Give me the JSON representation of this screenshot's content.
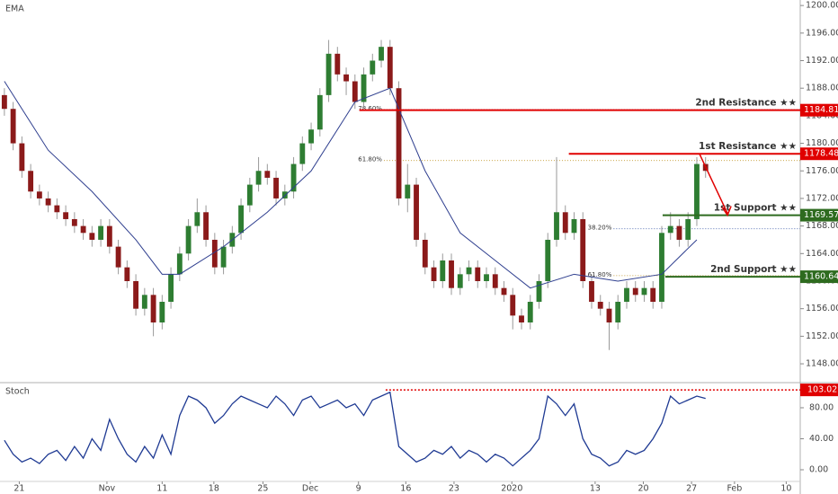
{
  "chart_data": {
    "type": "candlestick",
    "indicator_label": "EMA",
    "xlim": [
      0,
      91.3
    ],
    "xticks": [
      {
        "value": 2.2,
        "label": "21"
      },
      {
        "value": 12.2,
        "label": "Nov"
      },
      {
        "value": 18.5,
        "label": "11"
      },
      {
        "value": 24.4,
        "label": "18"
      },
      {
        "value": 30,
        "label": "25"
      },
      {
        "value": 35.4,
        "label": "Dec"
      },
      {
        "value": 40.9,
        "label": "9"
      },
      {
        "value": 46.3,
        "label": "16"
      },
      {
        "value": 51.8,
        "label": "23"
      },
      {
        "value": 58.4,
        "label": "2020"
      },
      {
        "value": 67.9,
        "label": "13"
      },
      {
        "value": 73.4,
        "label": "20"
      },
      {
        "value": 78.9,
        "label": "27"
      },
      {
        "value": 83.8,
        "label": "Feb"
      },
      {
        "value": 89.7,
        "label": "10"
      }
    ],
    "ylim": [
      1145.4,
      1200.8
    ],
    "yticks": [
      {
        "value": 1148,
        "label": "1148.00"
      },
      {
        "value": 1152,
        "label": "1152.00"
      },
      {
        "value": 1156,
        "label": "1156.00"
      },
      {
        "value": 1160,
        "label": "1160.00"
      },
      {
        "value": 1164,
        "label": "1164.00"
      },
      {
        "value": 1168,
        "label": "1168.00"
      },
      {
        "value": 1172,
        "label": "1172.00"
      },
      {
        "value": 1176,
        "label": "1176.00"
      },
      {
        "value": 1180,
        "label": "1180.00"
      },
      {
        "value": 1184,
        "label": "1184.00"
      },
      {
        "value": 1188,
        "label": "1188.00"
      },
      {
        "value": 1192,
        "label": "1192.00"
      },
      {
        "value": 1196,
        "label": "1196.00"
      },
      {
        "value": 1200,
        "label": "1200.00"
      }
    ],
    "up_color": "#2e7d32",
    "down_color": "#8b1a1a",
    "open": [
      1187,
      1185,
      1180,
      1176,
      1173,
      1172,
      1171,
      1170,
      1169,
      1168,
      1167,
      1166,
      1168,
      1165,
      1162,
      1160,
      1156,
      1158,
      1154,
      1157,
      1161,
      1164,
      1168,
      1170,
      1166,
      1162,
      1165,
      1167,
      1171,
      1174,
      1176,
      1175,
      1172,
      1173,
      1177,
      1180,
      1182,
      1187,
      1193,
      1190,
      1189,
      1186,
      1190,
      1192,
      1194,
      1188,
      1172,
      1174,
      1166,
      1162,
      1160,
      1163,
      1159,
      1161,
      1162,
      1160,
      1161,
      1159,
      1158,
      1155,
      1154,
      1157,
      1160,
      1166,
      1170,
      1167,
      1169,
      1160,
      1157,
      1156,
      1154,
      1157,
      1159,
      1158,
      1159,
      1157,
      1167,
      1168,
      1166,
      1169,
      1177
    ],
    "high": [
      1188,
      1186,
      1181,
      1177,
      1174,
      1173,
      1172,
      1171,
      1170,
      1169,
      1168,
      1169,
      1169,
      1166,
      1163,
      1161,
      1159,
      1159,
      1158,
      1162,
      1165,
      1169,
      1172,
      1171,
      1167,
      1166,
      1168,
      1172,
      1175,
      1178,
      1177,
      1176,
      1174,
      1178,
      1181,
      1183,
      1188,
      1195,
      1194,
      1191,
      1190,
      1191,
      1193,
      1195,
      1195,
      1189,
      1177,
      1175,
      1167,
      1163,
      1164,
      1164,
      1162,
      1163,
      1163,
      1162,
      1162,
      1160,
      1159,
      1156,
      1158,
      1161,
      1167,
      1178,
      1171,
      1170,
      1170,
      1161,
      1158,
      1157,
      1158,
      1160,
      1160,
      1160,
      1160,
      1168,
      1170,
      1169,
      1170,
      1178,
      1178
    ],
    "low": [
      1184,
      1179,
      1175,
      1172,
      1171,
      1170,
      1169,
      1168,
      1167,
      1166,
      1165,
      1165,
      1164,
      1161,
      1159,
      1155,
      1155,
      1152,
      1153,
      1156,
      1160,
      1163,
      1167,
      1165,
      1161,
      1161,
      1164,
      1166,
      1170,
      1173,
      1174,
      1171,
      1171,
      1172,
      1176,
      1179,
      1181,
      1186,
      1189,
      1187,
      1185,
      1185,
      1189,
      1191,
      1187,
      1171,
      1170,
      1165,
      1161,
      1159,
      1159,
      1158,
      1158,
      1160,
      1159,
      1159,
      1158,
      1157,
      1153,
      1153,
      1153,
      1156,
      1159,
      1165,
      1166,
      1166,
      1159,
      1156,
      1155,
      1150,
      1153,
      1156,
      1157,
      1157,
      1156,
      1156,
      1166,
      1165,
      1165,
      1168,
      1175
    ],
    "close": [
      1185,
      1180,
      1176,
      1173,
      1172,
      1171,
      1170,
      1169,
      1168,
      1167,
      1166,
      1168,
      1165,
      1162,
      1160,
      1156,
      1158,
      1154,
      1157,
      1161,
      1164,
      1168,
      1170,
      1166,
      1162,
      1165,
      1167,
      1171,
      1174,
      1176,
      1175,
      1172,
      1173,
      1177,
      1180,
      1182,
      1187,
      1193,
      1190,
      1189,
      1186,
      1190,
      1192,
      1194,
      1188,
      1172,
      1174,
      1166,
      1162,
      1160,
      1163,
      1159,
      1161,
      1162,
      1160,
      1161,
      1159,
      1158,
      1155,
      1154,
      1157,
      1160,
      1166,
      1170,
      1167,
      1169,
      1160,
      1157,
      1156,
      1154,
      1157,
      1159,
      1158,
      1159,
      1157,
      1167,
      1168,
      1166,
      1169,
      1177,
      1176
    ],
    "ema": {
      "color": "#2f3f8f",
      "x": [
        0,
        5,
        10,
        15,
        18,
        20,
        25,
        30,
        35,
        40,
        44,
        48,
        52,
        56,
        60,
        65,
        70,
        75,
        79
      ],
      "values": [
        1189,
        1179,
        1173,
        1166,
        1161,
        1161,
        1165,
        1170,
        1176,
        1186,
        1188,
        1176,
        1167,
        1163,
        1159,
        1161,
        1160,
        1161,
        1166
      ]
    },
    "levels": [
      {
        "label": "2nd Resistance ★★",
        "value": 1184.81,
        "start": 41,
        "color": "#e00000"
      },
      {
        "label": "1st Resistance ★★",
        "value": 1178.48,
        "start": 64.9,
        "color": "#e00000"
      },
      {
        "label": "1st Support ★★",
        "value": 1169.57,
        "start": 75.6,
        "color": "#2e6b1f"
      },
      {
        "label": "2nd Support ★★",
        "value": 1160.64,
        "start": 75.9,
        "color": "#2e6b1f"
      }
    ],
    "fibs": [
      {
        "label": "78.60%",
        "ratio": 78.6,
        "price": 1184.9,
        "start": 43.8,
        "color": "#3b5ba8"
      },
      {
        "label": "61.80%",
        "ratio": 61.8,
        "price": 1177.5,
        "start": 43.8,
        "color": "#b8860b"
      },
      {
        "label": "38.20%",
        "ratio": 38.2,
        "price": 1167.6,
        "start": 70,
        "color": "#3b5ba8"
      },
      {
        "label": "61.80%",
        "ratio": 61.8,
        "price": 1160.8,
        "start": 70,
        "color": "#b8860b"
      }
    ],
    "stoch": {
      "label": "Stoch",
      "color": "#1f3a93",
      "ylim": [
        -13.9,
        110.1
      ],
      "yticks": [
        {
          "value": 0,
          "label": "0.00"
        },
        {
          "value": 40,
          "label": "40.00"
        },
        {
          "value": 80,
          "label": "80.00"
        }
      ],
      "values": [
        38,
        20,
        10,
        15,
        8,
        20,
        25,
        12,
        30,
        15,
        40,
        25,
        65,
        40,
        20,
        10,
        30,
        15,
        45,
        20,
        70,
        95,
        90,
        80,
        60,
        70,
        85,
        95,
        90,
        85,
        80,
        95,
        85,
        70,
        90,
        95,
        80,
        85,
        90,
        80,
        85,
        70,
        90,
        95,
        100,
        30,
        20,
        10,
        15,
        25,
        20,
        30,
        15,
        25,
        20,
        10,
        20,
        15,
        5,
        15,
        25,
        40,
        95,
        85,
        70,
        85,
        40,
        20,
        15,
        5,
        10,
        25,
        20,
        25,
        40,
        60,
        95,
        85,
        90,
        95,
        92
      ],
      "level": {
        "value": 103.02,
        "start": 44,
        "color": "#e00000"
      }
    }
  }
}
